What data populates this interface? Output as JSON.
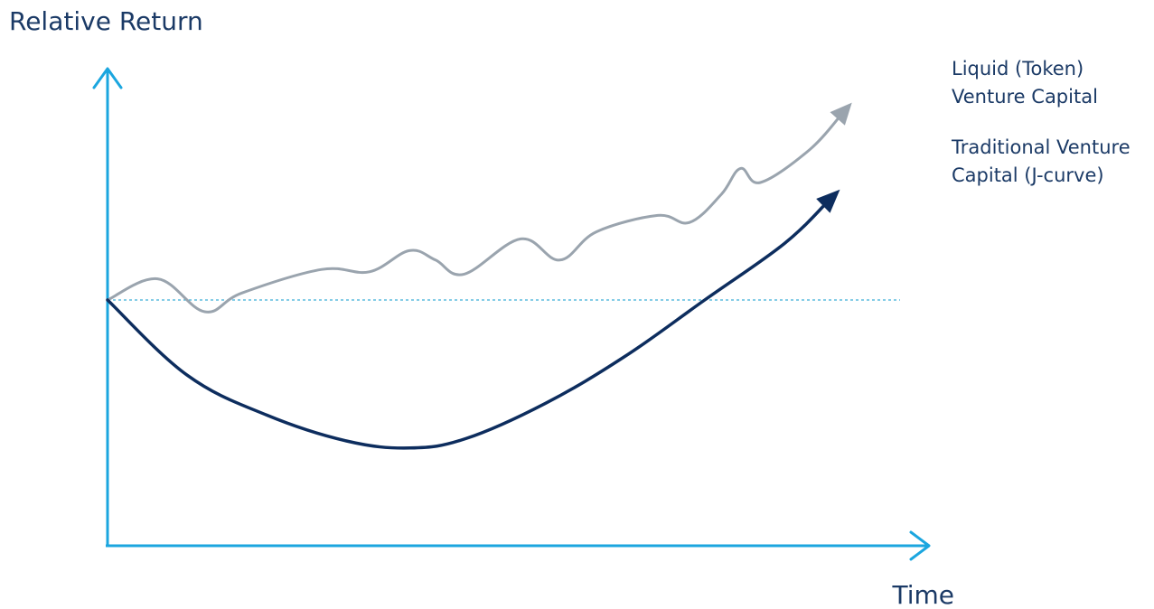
{
  "chart_data": {
    "type": "line",
    "ylabel": "Relative Return",
    "xlabel": "Time",
    "grid": false,
    "legend": "right",
    "baseline": 0,
    "xlim": [
      0,
      10
    ],
    "ylim": [
      -1.2,
      1.0
    ],
    "series": [
      {
        "name": "Liquid (Token) Venture Capital",
        "label_lines": [
          "Liquid (Token)",
          "Venture Capital"
        ],
        "color": "#9aa4ae",
        "x": [
          0,
          0.63,
          1.22,
          1.69,
          2.69,
          3.29,
          3.79,
          4.12,
          4.48,
          5.19,
          5.68,
          6.14,
          6.91,
          7.31,
          7.71,
          7.95,
          8.2,
          8.82,
          9.35
        ],
        "y": [
          0,
          0.09,
          -0.05,
          0.03,
          0.13,
          0.12,
          0.21,
          0.17,
          0.11,
          0.26,
          0.17,
          0.29,
          0.36,
          0.33,
          0.45,
          0.56,
          0.5,
          0.64,
          0.84
        ]
      },
      {
        "name": "Traditional Venture Capital (J-curve)",
        "label_lines": [
          "Traditional Venture",
          "Capital (J-curve)"
        ],
        "color": "#0d2d5e",
        "x": [
          0,
          1.0,
          2.0,
          3.0,
          3.8,
          4.5,
          5.5,
          6.5,
          7.5,
          8.5,
          9.2
        ],
        "y": [
          0,
          -0.32,
          -0.49,
          -0.6,
          -0.63,
          -0.59,
          -0.44,
          -0.24,
          0.0,
          0.24,
          0.47
        ]
      }
    ],
    "axis_color": "#1ba6df"
  }
}
